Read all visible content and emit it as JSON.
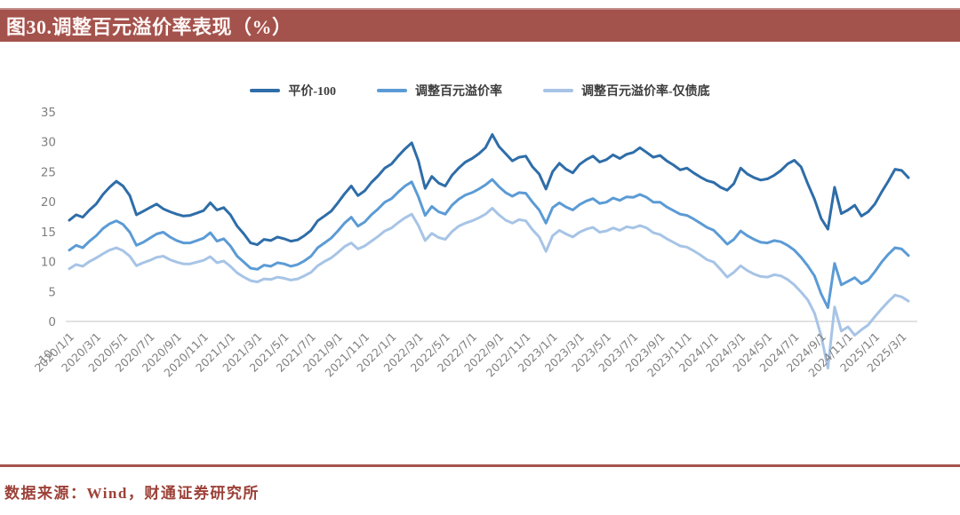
{
  "title": "图30.调整百元溢价率表现（%）",
  "source": "数据来源：Wind，财通证券研究所",
  "colors": {
    "title_bar_bg": "#a4524c",
    "title_text": "#fdf7f6",
    "source_text": "#9c4138",
    "divider": "#a5534d",
    "axis_label": "#808080",
    "gridline": "#d9d9d9"
  },
  "chart_data": {
    "type": "line",
    "title": "图30.调整百元溢价率表现（%）",
    "legend_position": "top-center",
    "grid": "zero-line-only",
    "ylim": [
      -10,
      35
    ],
    "y_ticks": [
      35,
      30,
      25,
      20,
      15,
      10,
      5,
      0
    ],
    "y_min_label": "-10",
    "x_tick_labels": [
      "2020/1/1",
      "2020/3/1",
      "2020/5/1",
      "2020/7/1",
      "2020/9/1",
      "2020/11/1",
      "2021/1/1",
      "2021/3/1",
      "2021/5/1",
      "2021/7/1",
      "2021/9/1",
      "2021/11/1",
      "2022/1/1",
      "2022/3/1",
      "2022/5/1",
      "2022/7/1",
      "2022/9/1",
      "2022/11/1",
      "2023/1/1",
      "2023/3/1",
      "2023/5/1",
      "2023/7/1",
      "2023/9/1",
      "2023/11/1",
      "2024/1/1",
      "2024/3/1",
      "2024/5/1",
      "2024/7/1",
      "2024/9/1",
      "2024/11/1",
      "2025/1/1",
      "2025/3/1"
    ],
    "series": [
      {
        "name": "平价-100",
        "color": "#2e6da8",
        "values": [
          16.9,
          17.8,
          17.4,
          18.6,
          19.6,
          21.2,
          22.4,
          23.4,
          22.6,
          21.0,
          17.8,
          18.4,
          19.0,
          19.6,
          18.8,
          18.3,
          17.9,
          17.6,
          17.7,
          18.1,
          18.5,
          19.8,
          18.6,
          19.0,
          17.8,
          15.9,
          14.6,
          13.1,
          12.8,
          13.7,
          13.5,
          14.1,
          13.8,
          13.4,
          13.6,
          14.3,
          15.2,
          16.8,
          17.6,
          18.4,
          19.8,
          21.3,
          22.6,
          21.0,
          21.8,
          23.2,
          24.3,
          25.6,
          26.3,
          27.6,
          28.8,
          29.8,
          26.8,
          22.2,
          24.2,
          23.1,
          22.6,
          24.4,
          25.6,
          26.6,
          27.2,
          28.0,
          29.0,
          31.2,
          29.2,
          28.0,
          26.8,
          27.4,
          27.6,
          25.8,
          24.6,
          22.1,
          25.0,
          26.4,
          25.4,
          24.8,
          26.2,
          27.0,
          27.6,
          26.6,
          27.0,
          27.8,
          27.2,
          27.9,
          28.2,
          29.0,
          28.2,
          27.4,
          27.7,
          26.8,
          26.1,
          25.3,
          25.6,
          24.8,
          24.1,
          23.5,
          23.2,
          22.4,
          21.9,
          23.0,
          25.6,
          24.6,
          24.0,
          23.6,
          23.8,
          24.4,
          25.2,
          26.3,
          26.9,
          25.8,
          23.0,
          20.4,
          17.2,
          15.4,
          22.4,
          18.0,
          18.6,
          19.4,
          17.6,
          18.3,
          19.6,
          21.6,
          23.4,
          25.4,
          25.2,
          24.0
        ]
      },
      {
        "name": "调整百元溢价率",
        "color": "#5b9bd5",
        "values": [
          11.9,
          12.7,
          12.3,
          13.4,
          14.3,
          15.5,
          16.3,
          16.8,
          16.2,
          14.9,
          12.7,
          13.2,
          13.9,
          14.6,
          14.9,
          14.1,
          13.5,
          13.1,
          13.1,
          13.5,
          13.9,
          14.8,
          13.4,
          13.8,
          12.6,
          10.9,
          9.9,
          8.9,
          8.7,
          9.4,
          9.2,
          9.8,
          9.6,
          9.2,
          9.5,
          10.1,
          10.9,
          12.3,
          13.1,
          13.9,
          15.1,
          16.4,
          17.4,
          15.9,
          16.6,
          17.8,
          18.8,
          19.9,
          20.5,
          21.6,
          22.6,
          23.3,
          20.8,
          17.7,
          19.2,
          18.3,
          17.9,
          19.4,
          20.4,
          21.1,
          21.5,
          22.1,
          22.8,
          23.7,
          22.5,
          21.5,
          20.9,
          21.5,
          21.4,
          19.9,
          18.6,
          16.4,
          19.0,
          19.8,
          19.1,
          18.6,
          19.5,
          20.1,
          20.5,
          19.7,
          19.9,
          20.6,
          20.2,
          20.8,
          20.7,
          21.2,
          20.7,
          19.9,
          19.9,
          19.1,
          18.5,
          17.9,
          17.7,
          17.1,
          16.4,
          15.7,
          15.2,
          14.1,
          12.9,
          13.7,
          15.1,
          14.3,
          13.7,
          13.2,
          13.1,
          13.5,
          13.3,
          12.7,
          11.9,
          10.7,
          9.3,
          7.6,
          4.6,
          2.3,
          9.7,
          6.1,
          6.7,
          7.3,
          6.3,
          6.9,
          8.3,
          9.9,
          11.2,
          12.3,
          12.1,
          11.0
        ]
      },
      {
        "name": "调整百元溢价率-仅债底",
        "color": "#a7c4e6",
        "values": [
          8.8,
          9.5,
          9.2,
          10.0,
          10.6,
          11.3,
          11.9,
          12.3,
          11.8,
          10.9,
          9.3,
          9.8,
          10.2,
          10.7,
          10.9,
          10.3,
          9.9,
          9.6,
          9.6,
          9.9,
          10.2,
          10.8,
          9.8,
          10.1,
          9.2,
          8.1,
          7.4,
          6.8,
          6.6,
          7.1,
          7.0,
          7.4,
          7.2,
          6.9,
          7.1,
          7.6,
          8.2,
          9.3,
          10.0,
          10.6,
          11.5,
          12.5,
          13.1,
          12.1,
          12.6,
          13.4,
          14.2,
          15.1,
          15.6,
          16.5,
          17.3,
          17.9,
          16.0,
          13.5,
          14.7,
          14.0,
          13.7,
          15.0,
          15.9,
          16.4,
          16.8,
          17.3,
          17.9,
          18.9,
          17.8,
          16.9,
          16.4,
          17.0,
          16.8,
          15.3,
          14.1,
          11.7,
          14.3,
          15.2,
          14.6,
          14.1,
          14.9,
          15.4,
          15.7,
          14.9,
          15.1,
          15.6,
          15.2,
          15.8,
          15.6,
          16.0,
          15.6,
          14.8,
          14.5,
          13.8,
          13.2,
          12.6,
          12.4,
          11.8,
          11.1,
          10.3,
          9.9,
          8.7,
          7.4,
          8.2,
          9.3,
          8.5,
          7.9,
          7.5,
          7.4,
          7.8,
          7.6,
          7.0,
          6.1,
          4.9,
          3.6,
          1.4,
          -2.4,
          -7.8,
          2.4,
          -1.6,
          -0.9,
          -2.3,
          -1.4,
          -0.6,
          0.8,
          2.1,
          3.3,
          4.4,
          4.1,
          3.4
        ]
      }
    ]
  }
}
